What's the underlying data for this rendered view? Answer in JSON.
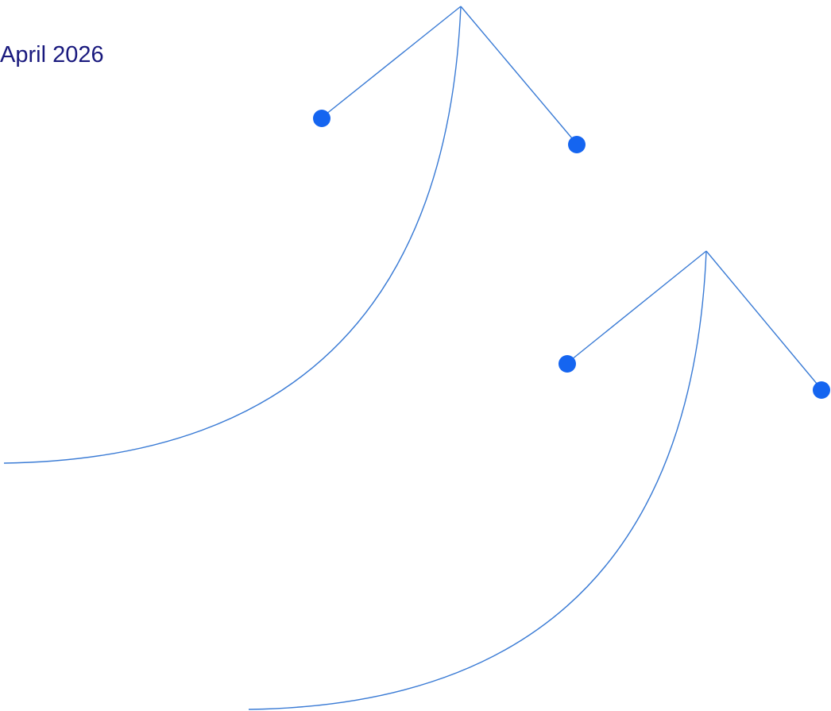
{
  "date_label": "April 2026",
  "colors": {
    "text": "#1a1a7e",
    "line": "#3a7bd5",
    "node": "#1565f0"
  },
  "diagram": {
    "motifs": [
      {
        "name": "upper-motif",
        "nodes": [
          "left-node",
          "right-node"
        ]
      },
      {
        "name": "lower-motif",
        "nodes": [
          "left-node",
          "right-node"
        ]
      }
    ]
  }
}
